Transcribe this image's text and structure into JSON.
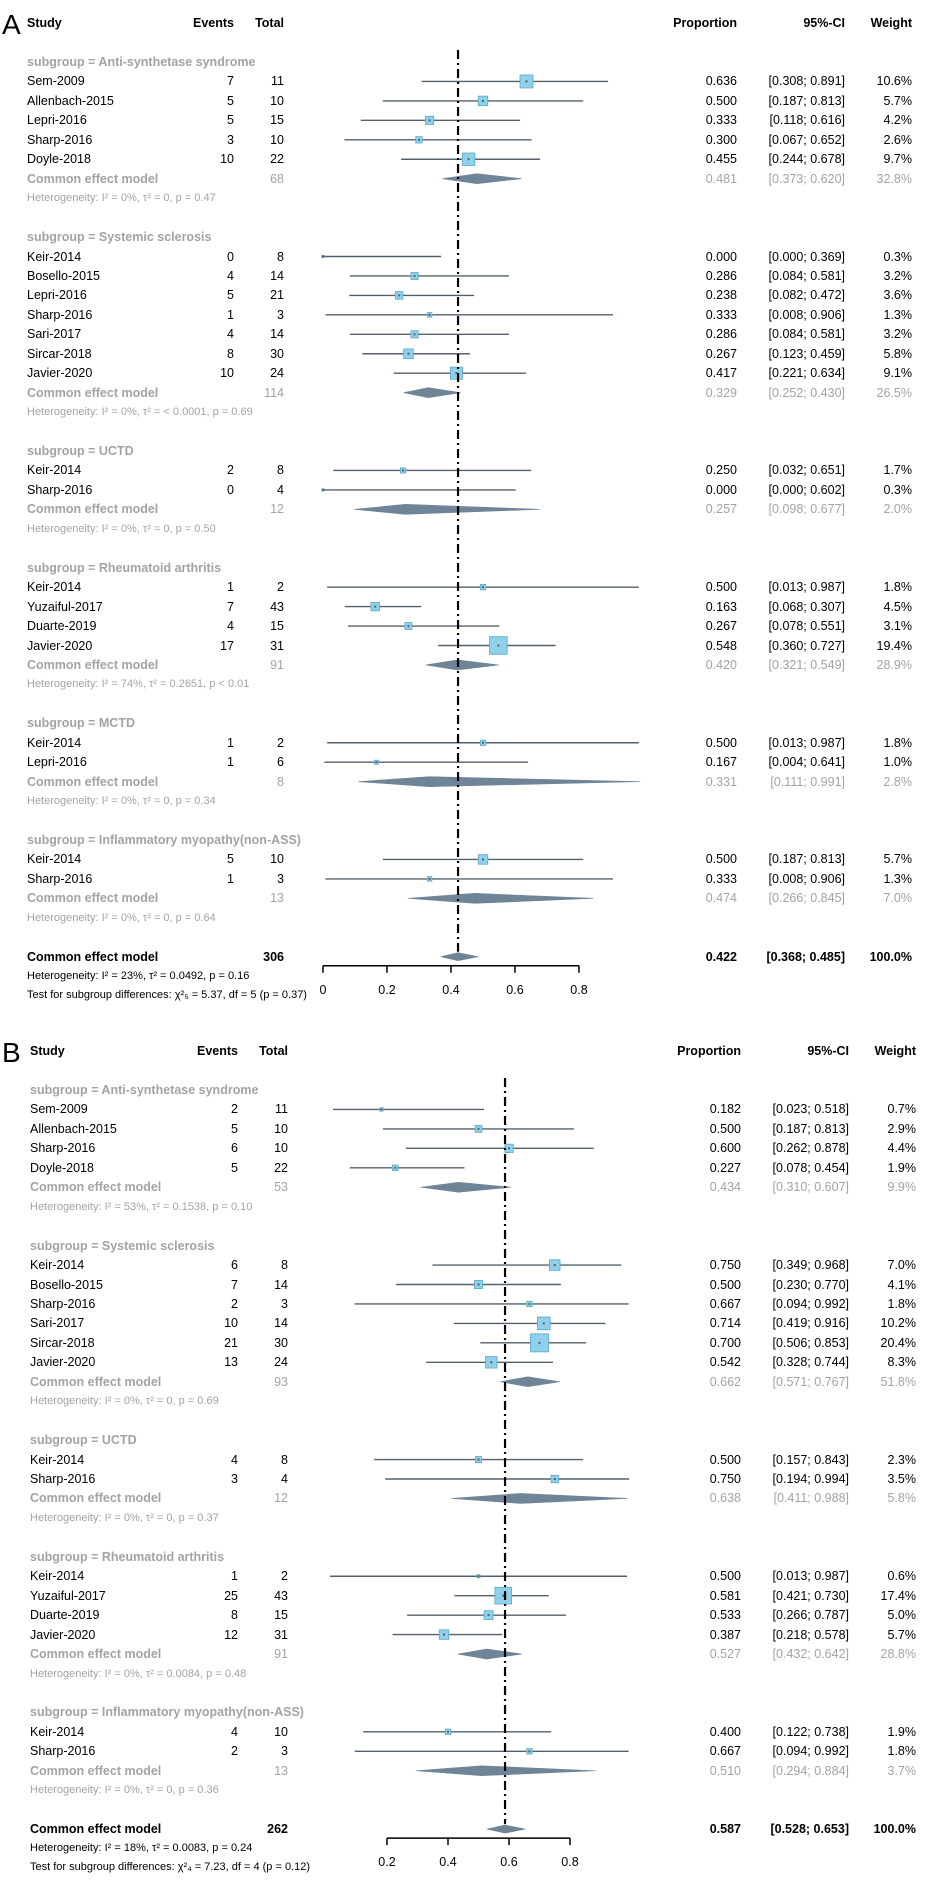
{
  "chart_data": {
    "type": "forest",
    "panels": [
      {
        "label": "A",
        "headers": {
          "study": "Study",
          "events": "Events",
          "total": "Total",
          "proportion": "Proportion",
          "ci": "95%-CI",
          "weight": "Weight"
        },
        "groups": [
          {
            "name": "subgroup = Anti-synthetase syndrome",
            "studies": [
              {
                "study": "Sem-2009",
                "events": "7",
                "total": "11",
                "prop": "0.636",
                "ci": "[0.308; 0.891]",
                "weight": "10.6%"
              },
              {
                "study": "Allenbach-2015",
                "events": "5",
                "total": "10",
                "prop": "0.500",
                "ci": "[0.187; 0.813]",
                "weight": "5.7%"
              },
              {
                "study": "Lepri-2016",
                "events": "5",
                "total": "15",
                "prop": "0.333",
                "ci": "[0.118; 0.616]",
                "weight": "4.2%"
              },
              {
                "study": "Sharp-2016",
                "events": "3",
                "total": "10",
                "prop": "0.300",
                "ci": "[0.067; 0.652]",
                "weight": "2.6%"
              },
              {
                "study": "Doyle-2018",
                "events": "10",
                "total": "22",
                "prop": "0.455",
                "ci": "[0.244; 0.678]",
                "weight": "9.7%"
              }
            ],
            "common": {
              "label": "Common effect model",
              "total": "68",
              "prop": "0.481",
              "ci": "[0.373; 0.620]",
              "weight": "32.8%"
            },
            "het": "Heterogeneity: I² = 0%, τ² = 0, p = 0.47"
          },
          {
            "name": "subgroup = Systemic sclerosis",
            "studies": [
              {
                "study": "Keir-2014",
                "events": "0",
                "total": "8",
                "prop": "0.000",
                "ci": "[0.000; 0.369]",
                "weight": "0.3%"
              },
              {
                "study": "Bosello-2015",
                "events": "4",
                "total": "14",
                "prop": "0.286",
                "ci": "[0.084; 0.581]",
                "weight": "3.2%"
              },
              {
                "study": "Lepri-2016",
                "events": "5",
                "total": "21",
                "prop": "0.238",
                "ci": "[0.082; 0.472]",
                "weight": "3.6%"
              },
              {
                "study": "Sharp-2016",
                "events": "1",
                "total": "3",
                "prop": "0.333",
                "ci": "[0.008; 0.906]",
                "weight": "1.3%"
              },
              {
                "study": "Sari-2017",
                "events": "4",
                "total": "14",
                "prop": "0.286",
                "ci": "[0.084; 0.581]",
                "weight": "3.2%"
              },
              {
                "study": "Sircar-2018",
                "events": "8",
                "total": "30",
                "prop": "0.267",
                "ci": "[0.123; 0.459]",
                "weight": "5.8%"
              },
              {
                "study": "Javier-2020",
                "events": "10",
                "total": "24",
                "prop": "0.417",
                "ci": "[0.221; 0.634]",
                "weight": "9.1%"
              }
            ],
            "common": {
              "label": "Common effect model",
              "total": "114",
              "prop": "0.329",
              "ci": "[0.252; 0.430]",
              "weight": "26.5%"
            },
            "het": "Heterogeneity: I² = 0%, τ² = < 0.0001, p = 0.69"
          },
          {
            "name": "subgroup = UCTD",
            "studies": [
              {
                "study": "Keir-2014",
                "events": "2",
                "total": "8",
                "prop": "0.250",
                "ci": "[0.032; 0.651]",
                "weight": "1.7%"
              },
              {
                "study": "Sharp-2016",
                "events": "0",
                "total": "4",
                "prop": "0.000",
                "ci": "[0.000; 0.602]",
                "weight": "0.3%"
              }
            ],
            "common": {
              "label": "Common effect model",
              "total": "12",
              "prop": "0.257",
              "ci": "[0.098; 0.677]",
              "weight": "2.0%"
            },
            "het": "Heterogeneity: I² = 0%, τ² = 0, p = 0.50"
          },
          {
            "name": "subgroup = Rheumatoid arthritis",
            "studies": [
              {
                "study": "Keir-2014",
                "events": "1",
                "total": "2",
                "prop": "0.500",
                "ci": "[0.013; 0.987]",
                "weight": "1.8%"
              },
              {
                "study": "Yuzaiful-2017",
                "events": "7",
                "total": "43",
                "prop": "0.163",
                "ci": "[0.068; 0.307]",
                "weight": "4.5%"
              },
              {
                "study": "Duarte-2019",
                "events": "4",
                "total": "15",
                "prop": "0.267",
                "ci": "[0.078; 0.551]",
                "weight": "3.1%"
              },
              {
                "study": "Javier-2020",
                "events": "17",
                "total": "31",
                "prop": "0.548",
                "ci": "[0.360; 0.727]",
                "weight": "19.4%"
              }
            ],
            "common": {
              "label": "Common effect model",
              "total": "91",
              "prop": "0.420",
              "ci": "[0.321; 0.549]",
              "weight": "28.9%"
            },
            "het": "Heterogeneity: I² = 74%, τ² = 0.2651, p < 0.01"
          },
          {
            "name": "subgroup = MCTD",
            "studies": [
              {
                "study": "Keir-2014",
                "events": "1",
                "total": "2",
                "prop": "0.500",
                "ci": "[0.013; 0.987]",
                "weight": "1.8%"
              },
              {
                "study": "Lepri-2016",
                "events": "1",
                "total": "6",
                "prop": "0.167",
                "ci": "[0.004; 0.641]",
                "weight": "1.0%"
              }
            ],
            "common": {
              "label": "Common effect model",
              "total": "8",
              "prop": "0.331",
              "ci": "[0.111; 0.991]",
              "weight": "2.8%"
            },
            "het": "Heterogeneity: I² = 0%, τ² = 0, p = 0.34"
          },
          {
            "name": "subgroup = Inflammatory myopathy(non-ASS)",
            "studies": [
              {
                "study": "Keir-2014",
                "events": "5",
                "total": "10",
                "prop": "0.500",
                "ci": "[0.187; 0.813]",
                "weight": "5.7%"
              },
              {
                "study": "Sharp-2016",
                "events": "1",
                "total": "3",
                "prop": "0.333",
                "ci": "[0.008; 0.906]",
                "weight": "1.3%"
              }
            ],
            "common": {
              "label": "Common effect model",
              "total": "13",
              "prop": "0.474",
              "ci": "[0.266; 0.845]",
              "weight": "7.0%"
            },
            "het": "Heterogeneity: I² = 0%, τ² = 0, p = 0.64"
          }
        ],
        "overall": {
          "label": "Common effect model",
          "total": "306",
          "prop": "0.422",
          "ci": "[0.368; 0.485]",
          "weight": "100.0%",
          "het": "Heterogeneity: I² = 23%, τ² = 0.0492, p = 0.16",
          "test": "Test for subgroup differences: χ²₅ = 5.37, df = 5 (p = 0.37)"
        },
        "axis_ticks": [
          "0",
          "0.2",
          "0.4",
          "0.6",
          "0.8"
        ]
      },
      {
        "label": "B",
        "headers": {
          "study": "Study",
          "events": "Events",
          "total": "Total",
          "proportion": "Proportion",
          "ci": "95%-CI",
          "weight": "Weight"
        },
        "groups": [
          {
            "name": "subgroup = Anti-synthetase syndrome",
            "studies": [
              {
                "study": "Sem-2009",
                "events": "2",
                "total": "11",
                "prop": "0.182",
                "ci": "[0.023; 0.518]",
                "weight": "0.7%"
              },
              {
                "study": "Allenbach-2015",
                "events": "5",
                "total": "10",
                "prop": "0.500",
                "ci": "[0.187; 0.813]",
                "weight": "2.9%"
              },
              {
                "study": "Sharp-2016",
                "events": "6",
                "total": "10",
                "prop": "0.600",
                "ci": "[0.262; 0.878]",
                "weight": "4.4%"
              },
              {
                "study": "Doyle-2018",
                "events": "5",
                "total": "22",
                "prop": "0.227",
                "ci": "[0.078; 0.454]",
                "weight": "1.9%"
              }
            ],
            "common": {
              "label": "Common effect model",
              "total": "53",
              "prop": "0.434",
              "ci": "[0.310; 0.607]",
              "weight": "9.9%"
            },
            "het": "Heterogeneity: I² = 53%, τ² = 0.1538, p = 0.10"
          },
          {
            "name": "subgroup = Systemic sclerosis",
            "studies": [
              {
                "study": "Keir-2014",
                "events": "6",
                "total": "8",
                "prop": "0.750",
                "ci": "[0.349; 0.968]",
                "weight": "7.0%"
              },
              {
                "study": "Bosello-2015",
                "events": "7",
                "total": "14",
                "prop": "0.500",
                "ci": "[0.230; 0.770]",
                "weight": "4.1%"
              },
              {
                "study": "Sharp-2016",
                "events": "2",
                "total": "3",
                "prop": "0.667",
                "ci": "[0.094; 0.992]",
                "weight": "1.8%"
              },
              {
                "study": "Sari-2017",
                "events": "10",
                "total": "14",
                "prop": "0.714",
                "ci": "[0.419; 0.916]",
                "weight": "10.2%"
              },
              {
                "study": "Sircar-2018",
                "events": "21",
                "total": "30",
                "prop": "0.700",
                "ci": "[0.506; 0.853]",
                "weight": "20.4%"
              },
              {
                "study": "Javier-2020",
                "events": "13",
                "total": "24",
                "prop": "0.542",
                "ci": "[0.328; 0.744]",
                "weight": "8.3%"
              }
            ],
            "common": {
              "label": "Common effect model",
              "total": "93",
              "prop": "0.662",
              "ci": "[0.571; 0.767]",
              "weight": "51.8%"
            },
            "het": "Heterogeneity: I² = 0%, τ² = 0, p = 0.69"
          },
          {
            "name": "subgroup = UCTD",
            "studies": [
              {
                "study": "Keir-2014",
                "events": "4",
                "total": "8",
                "prop": "0.500",
                "ci": "[0.157; 0.843]",
                "weight": "2.3%"
              },
              {
                "study": "Sharp-2016",
                "events": "3",
                "total": "4",
                "prop": "0.750",
                "ci": "[0.194; 0.994]",
                "weight": "3.5%"
              }
            ],
            "common": {
              "label": "Common effect model",
              "total": "12",
              "prop": "0.638",
              "ci": "[0.411; 0.988]",
              "weight": "5.8%"
            },
            "het": "Heterogeneity: I² = 0%, τ² = 0, p = 0.37"
          },
          {
            "name": "subgroup = Rheumatoid arthritis",
            "studies": [
              {
                "study": "Keir-2014",
                "events": "1",
                "total": "2",
                "prop": "0.500",
                "ci": "[0.013; 0.987]",
                "weight": "0.6%"
              },
              {
                "study": "Yuzaiful-2017",
                "events": "25",
                "total": "43",
                "prop": "0.581",
                "ci": "[0.421; 0.730]",
                "weight": "17.4%"
              },
              {
                "study": "Duarte-2019",
                "events": "8",
                "total": "15",
                "prop": "0.533",
                "ci": "[0.266; 0.787]",
                "weight": "5.0%"
              },
              {
                "study": "Javier-2020",
                "events": "12",
                "total": "31",
                "prop": "0.387",
                "ci": "[0.218; 0.578]",
                "weight": "5.7%"
              }
            ],
            "common": {
              "label": "Common effect model",
              "total": "91",
              "prop": "0.527",
              "ci": "[0.432; 0.642]",
              "weight": "28.8%"
            },
            "het": "Heterogeneity: I² = 0%, τ² = 0.0084, p = 0.48"
          },
          {
            "name": "subgroup = Inflammatory myopathy(non-ASS)",
            "studies": [
              {
                "study": "Keir-2014",
                "events": "4",
                "total": "10",
                "prop": "0.400",
                "ci": "[0.122; 0.738]",
                "weight": "1.9%"
              },
              {
                "study": "Sharp-2016",
                "events": "2",
                "total": "3",
                "prop": "0.667",
                "ci": "[0.094; 0.992]",
                "weight": "1.8%"
              }
            ],
            "common": {
              "label": "Common effect model",
              "total": "13",
              "prop": "0.510",
              "ci": "[0.294; 0.884]",
              "weight": "3.7%"
            },
            "het": "Heterogeneity: I² = 0%, τ² = 0, p = 0.36"
          }
        ],
        "overall": {
          "label": "Common effect model",
          "total": "262",
          "prop": "0.587",
          "ci": "[0.528; 0.653]",
          "weight": "100.0%",
          "het": "Heterogeneity: I² = 18%, τ² = 0.0083, p = 0.24",
          "test": "Test for subgroup differences: χ²₄ = 7.23, df = 4 (p = 0.12)"
        },
        "axis_ticks": [
          "0.2",
          "0.4",
          "0.6",
          "0.8"
        ]
      }
    ],
    "colors": {
      "square": "#8fd0ea",
      "square_border": "#5aa9c9",
      "ci_line": "#56606b",
      "diamond": "#6f8497",
      "grey_text": "#a3a3a3"
    }
  }
}
